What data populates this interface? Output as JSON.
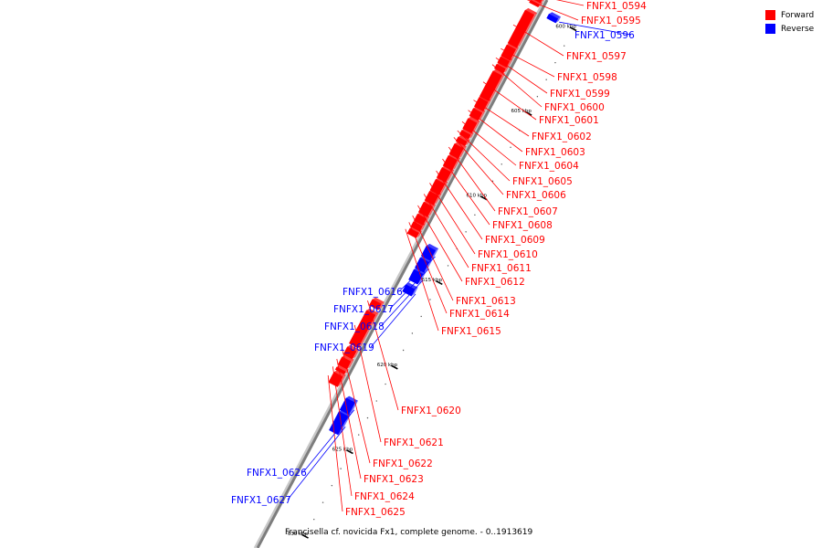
{
  "caption": "Francisella cf. novicida Fx1, complete genome. - 0..1913619",
  "legend": [
    {
      "label": "Forward",
      "color": "#ff0000"
    },
    {
      "label": "Reverse",
      "color": "#0000ff"
    }
  ],
  "axis": {
    "start_kbp": 599.3,
    "end_kbp": 631.7
  },
  "major_ticks": [
    {
      "kbp": 600,
      "label": "600 kbp"
    },
    {
      "kbp": 605,
      "label": "605 kbp"
    },
    {
      "kbp": 610,
      "label": "610 kbp"
    },
    {
      "kbp": 615,
      "label": "615 kbp"
    },
    {
      "kbp": 620,
      "label": "620 kbp"
    },
    {
      "kbp": 625,
      "label": "625 kbp"
    },
    {
      "kbp": 630,
      "label": "630 kbp"
    }
  ],
  "genes": [
    {
      "name": "FNFX1_0594",
      "strand": "forward"
    },
    {
      "name": "FNFX1_0595",
      "strand": "forward"
    },
    {
      "name": "FNFX1_0596",
      "strand": "reverse"
    },
    {
      "name": "FNFX1_0597",
      "strand": "forward"
    },
    {
      "name": "FNFX1_0598",
      "strand": "forward"
    },
    {
      "name": "FNFX1_0599",
      "strand": "forward"
    },
    {
      "name": "FNFX1_0600",
      "strand": "forward"
    },
    {
      "name": "FNFX1_0601",
      "strand": "forward"
    },
    {
      "name": "FNFX1_0602",
      "strand": "forward"
    },
    {
      "name": "FNFX1_0603",
      "strand": "forward"
    },
    {
      "name": "FNFX1_0604",
      "strand": "forward"
    },
    {
      "name": "FNFX1_0605",
      "strand": "forward"
    },
    {
      "name": "FNFX1_0606",
      "strand": "forward"
    },
    {
      "name": "FNFX1_0607",
      "strand": "forward"
    },
    {
      "name": "FNFX1_0608",
      "strand": "forward"
    },
    {
      "name": "FNFX1_0609",
      "strand": "forward"
    },
    {
      "name": "FNFX1_0610",
      "strand": "forward"
    },
    {
      "name": "FNFX1_0611",
      "strand": "forward"
    },
    {
      "name": "FNFX1_0612",
      "strand": "forward"
    },
    {
      "name": "FNFX1_0613",
      "strand": "forward"
    },
    {
      "name": "FNFX1_0614",
      "strand": "forward"
    },
    {
      "name": "FNFX1_0615",
      "strand": "forward"
    },
    {
      "name": "FNFX1_0616",
      "strand": "reverse"
    },
    {
      "name": "FNFX1_0617",
      "strand": "reverse"
    },
    {
      "name": "FNFX1_0618",
      "strand": "reverse"
    },
    {
      "name": "FNFX1_0619",
      "strand": "reverse"
    },
    {
      "name": "FNFX1_0620",
      "strand": "forward"
    },
    {
      "name": "FNFX1_0621",
      "strand": "forward"
    },
    {
      "name": "FNFX1_0622",
      "strand": "forward"
    },
    {
      "name": "FNFX1_0623",
      "strand": "forward"
    },
    {
      "name": "FNFX1_0624",
      "strand": "forward"
    },
    {
      "name": "FNFX1_0625",
      "strand": "forward"
    },
    {
      "name": "FNFX1_0626",
      "strand": "reverse"
    },
    {
      "name": "FNFX1_0627",
      "strand": "reverse"
    }
  ]
}
